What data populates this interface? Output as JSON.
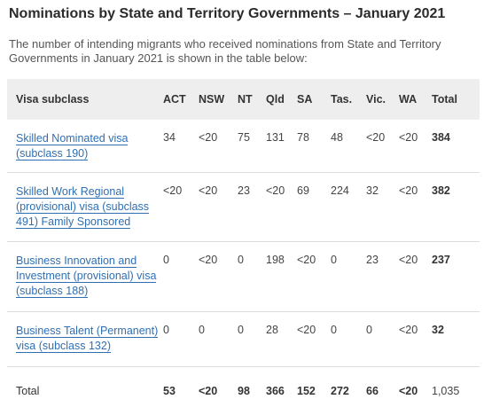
{
  "heading": "Nominations by State and Territory Governments – January 2021",
  "intro": "The number of intending migrants who received nominations from State and Territory Governments in January 2021 is shown in the table below:",
  "table": {
    "headers": [
      "Visa subclass",
      "ACT",
      "NSW",
      "NT",
      "Qld",
      "SA",
      "Tas.",
      "Vic.",
      "WA",
      "Total"
    ],
    "rows": [
      {
        "name_lines": [
          "Skilled Nominated visa",
          "(subclass 190)"
        ],
        "values": [
          "34",
          "<20",
          "75",
          "131",
          "78",
          "48",
          "<20",
          "<20",
          "384"
        ]
      },
      {
        "name_lines": [
          "Skilled Work Regional",
          "(provisional) visa (subclass",
          "491) Family Sponsored"
        ],
        "values": [
          "<20",
          "<20",
          "23",
          "<20",
          "69",
          "224",
          "32",
          "<20",
          "382"
        ]
      },
      {
        "name_lines": [
          "Business Innovation and",
          "Investment (provisional) visa",
          "(subclass 188)"
        ],
        "values": [
          "0",
          "<20",
          "0",
          "198",
          "<20",
          "0",
          "23",
          "<20",
          "237"
        ]
      },
      {
        "name_lines": [
          "Business Talent (Permanent)",
          "visa (subclass 132)"
        ],
        "values": [
          "0",
          "0",
          "0",
          "28",
          "<20",
          "0",
          "0",
          "<20",
          "32"
        ]
      }
    ],
    "total_row": {
      "label": "Total",
      "values": [
        "53",
        "<20",
        "98",
        "366",
        "152",
        "272",
        "66",
        "<20",
        "1,035"
      ]
    }
  },
  "colors": {
    "link": "#2f6fb3",
    "header_bg": "#eeeeee",
    "divider": "#dcdcdc"
  }
}
